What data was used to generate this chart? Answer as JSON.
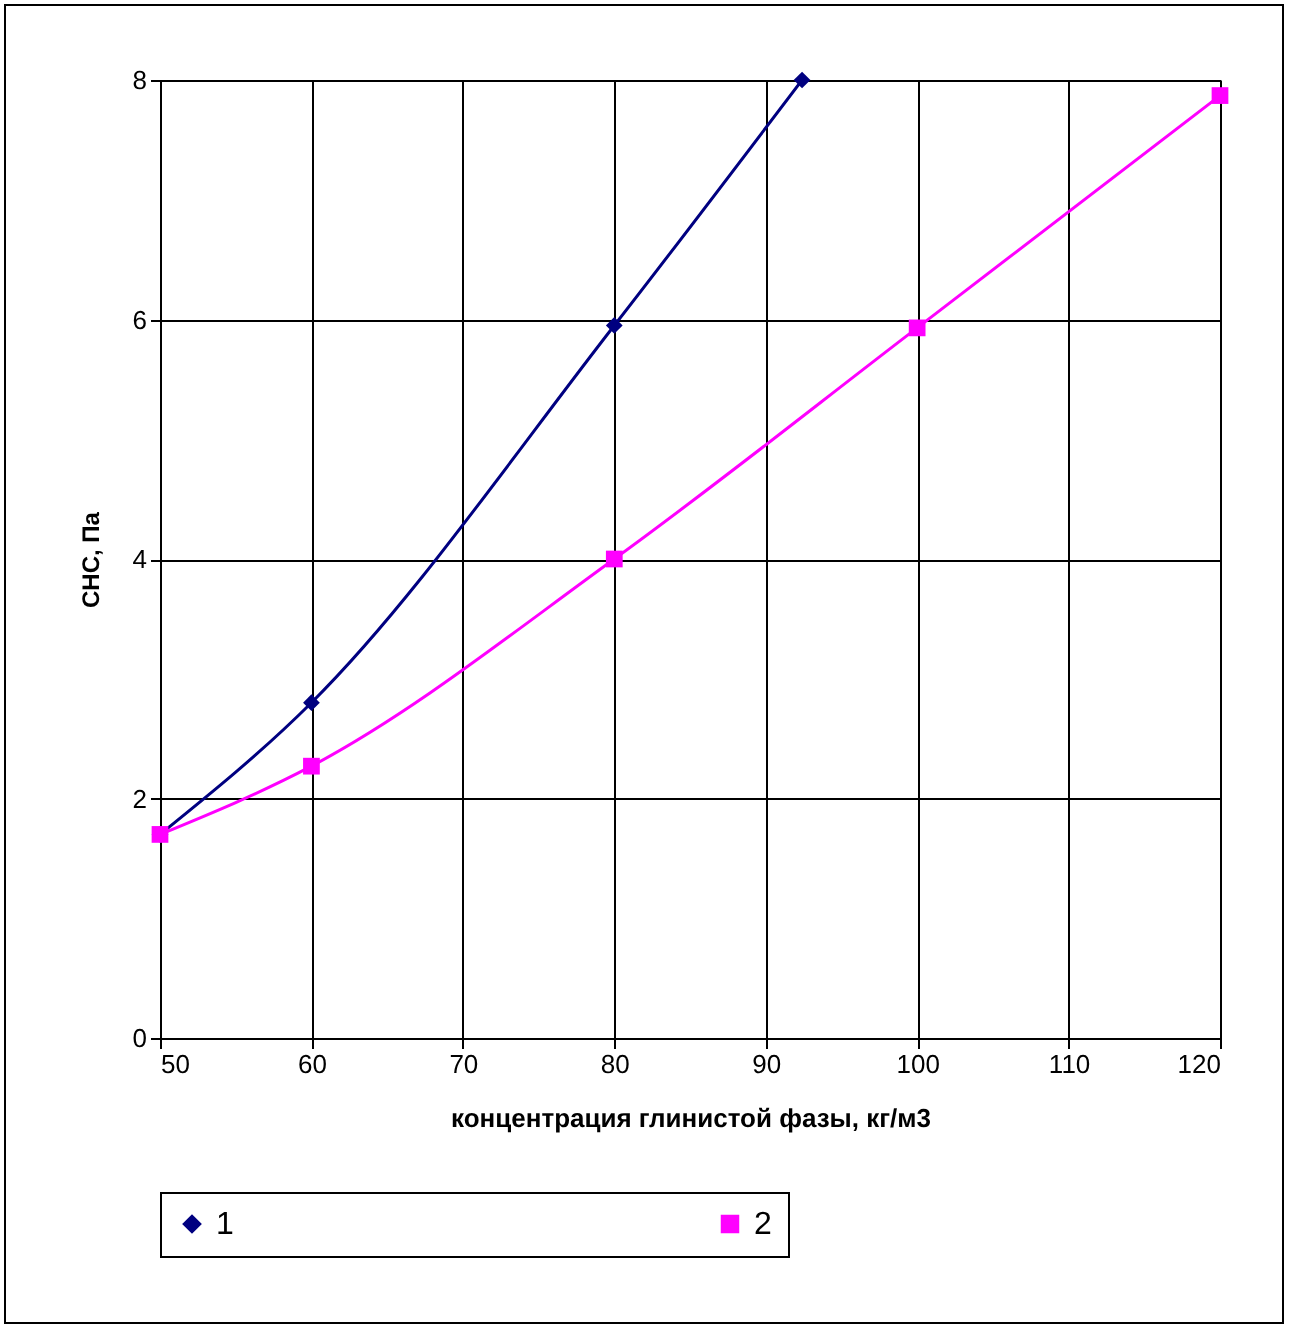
{
  "chart_data": {
    "type": "line",
    "xlabel": "концентрация глинистой фазы, кг/м3",
    "ylabel": "СНС, Па",
    "xlim": [
      50,
      120
    ],
    "xticks": [
      50,
      60,
      70,
      80,
      90,
      100,
      110,
      120
    ],
    "ylim": [
      0,
      8
    ],
    "yticks": [
      0,
      2,
      4,
      6,
      8
    ],
    "grid": true,
    "legend": "bottom",
    "line_style": "solid",
    "series": [
      {
        "name": "1",
        "color": "#000080",
        "marker": "diamond",
        "x": [
          50,
          60,
          80,
          92.4
        ],
        "values": [
          1.7,
          2.8,
          5.95,
          8
        ]
      },
      {
        "name": "2",
        "color": "#ff00ff",
        "marker": "square",
        "x": [
          50,
          60,
          80,
          100,
          120
        ],
        "values": [
          1.7,
          2.27,
          4.0,
          5.93,
          7.87
        ]
      }
    ]
  }
}
